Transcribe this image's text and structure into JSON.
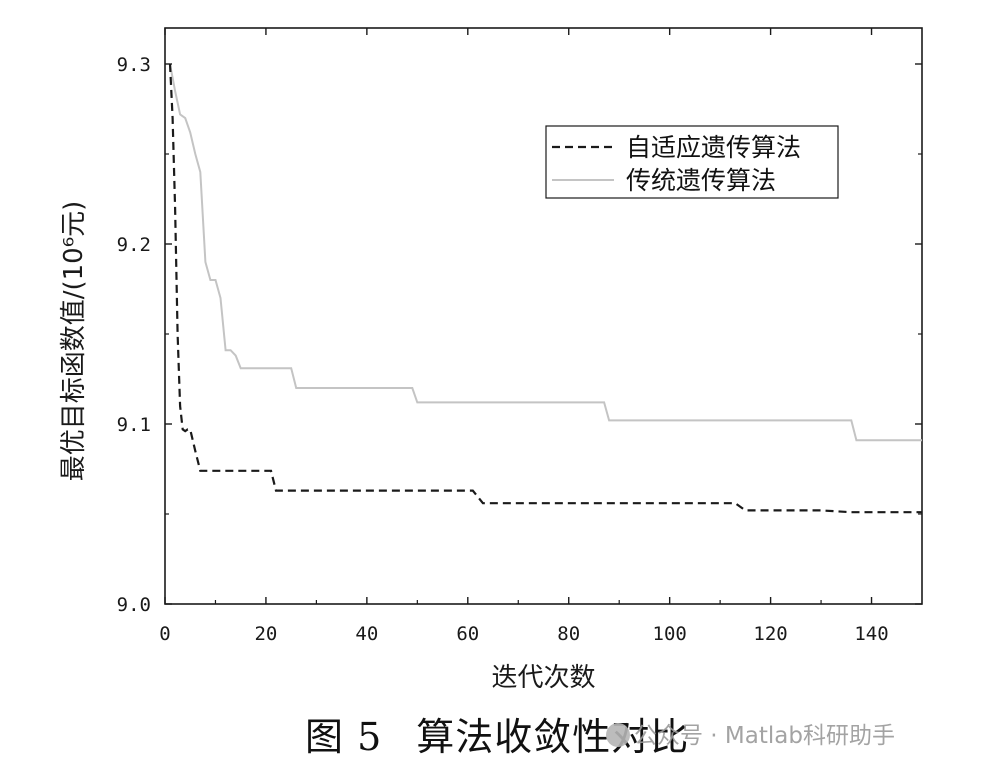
{
  "chart_data": {
    "type": "line",
    "title": "",
    "xlabel": "迭代次数",
    "ylabel": "最优目标函数值/(10⁶元)",
    "xlim": [
      0,
      150
    ],
    "ylim": [
      9.0,
      9.32
    ],
    "xticks": [
      0,
      20,
      40,
      60,
      80,
      100,
      120,
      140
    ],
    "xtick_labels": [
      "0",
      "20",
      "40",
      "60",
      "80",
      "100",
      "120",
      "140"
    ],
    "yticks": [
      9.0,
      9.1,
      9.2,
      9.3
    ],
    "ytick_labels": [
      "9.0",
      "9.1",
      "9.2",
      "9.3"
    ],
    "grid": false,
    "legend_position": "top-right",
    "series": [
      {
        "name": "自适应遗传算法",
        "style": "dashed",
        "color": "#1a1a1a",
        "x": [
          1,
          1.5,
          2,
          2.5,
          3,
          3.5,
          4,
          4.5,
          5,
          6,
          7,
          10,
          15,
          21,
          22,
          25,
          30,
          40,
          50,
          61,
          63,
          80,
          100,
          113,
          115,
          130,
          136,
          140,
          150
        ],
        "y": [
          9.3,
          9.27,
          9.22,
          9.15,
          9.11,
          9.097,
          9.096,
          9.097,
          9.097,
          9.085,
          9.074,
          9.074,
          9.074,
          9.074,
          9.063,
          9.063,
          9.063,
          9.063,
          9.063,
          9.063,
          9.056,
          9.056,
          9.056,
          9.056,
          9.052,
          9.052,
          9.051,
          9.051,
          9.051
        ]
      },
      {
        "name": "传统遗传算法",
        "style": "solid",
        "color": "#c4c4c4",
        "x": [
          1,
          2,
          3,
          4,
          5,
          6,
          7,
          8,
          9,
          10,
          11,
          12,
          13,
          14,
          15,
          18,
          20,
          25,
          26,
          30,
          40,
          49,
          50,
          60,
          70,
          87,
          88,
          100,
          120,
          136,
          137,
          140,
          150
        ],
        "y": [
          9.3,
          9.285,
          9.272,
          9.27,
          9.262,
          9.25,
          9.24,
          9.19,
          9.18,
          9.18,
          9.17,
          9.141,
          9.141,
          9.138,
          9.131,
          9.131,
          9.131,
          9.131,
          9.12,
          9.12,
          9.12,
          9.12,
          9.112,
          9.112,
          9.112,
          9.112,
          9.102,
          9.102,
          9.102,
          9.102,
          9.091,
          9.091,
          9.091
        ]
      }
    ]
  },
  "caption": {
    "figure_number": "图 5",
    "figure_title": "算法收敛性对比"
  },
  "watermark": {
    "text": "公众号 · Matlab科研助手"
  }
}
